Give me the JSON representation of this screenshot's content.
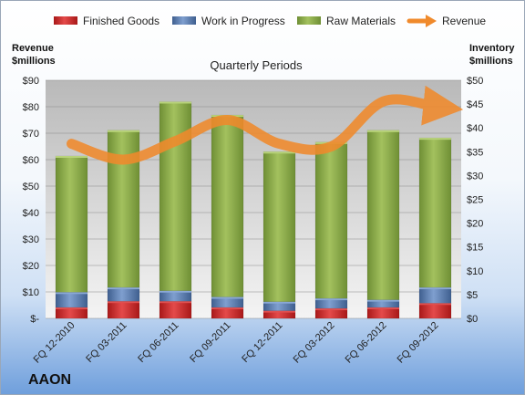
{
  "chart_data": {
    "type": "bar",
    "subtype": "stacked-bar-with-line",
    "title": "Quarterly Periods",
    "company": "AAON",
    "categories": [
      "FQ 12-2010",
      "FQ 03-2011",
      "FQ 06-2011",
      "FQ 09-2011",
      "FQ 12-2011",
      "FQ 03-2012",
      "FQ 06-2012",
      "FQ 09-2012"
    ],
    "left_axis": {
      "label_line1": "Revenue",
      "label_line2": "$millions",
      "ticks": [
        "$-",
        "$10",
        "$20",
        "$30",
        "$40",
        "$50",
        "$60",
        "$70",
        "$80",
        "$90"
      ],
      "ylim": [
        0,
        90
      ]
    },
    "right_axis": {
      "label_line1": "Inventory",
      "label_line2": "$millions",
      "ticks": [
        "$0",
        "$5",
        "$10",
        "$15",
        "$20",
        "$25",
        "$30",
        "$35",
        "$40",
        "$45",
        "$50"
      ],
      "ylim": [
        0,
        50
      ]
    },
    "grid": true,
    "legend_position": "top",
    "series": [
      {
        "name": "Finished Goods",
        "kind": "bar",
        "axis": "right",
        "color": "#cc2222",
        "values": [
          2.3,
          3.6,
          3.6,
          2.3,
          1.6,
          2.1,
          2.3,
          3.2
        ]
      },
      {
        "name": "Work in Progress",
        "kind": "bar",
        "axis": "right",
        "color": "#5b7fb0",
        "values": [
          3.2,
          2.9,
          2.2,
          2.2,
          1.9,
          2.1,
          1.6,
          3.3
        ]
      },
      {
        "name": "Raw Materials",
        "kind": "bar",
        "axis": "right",
        "color": "#8aaa48",
        "values": [
          28.6,
          33.0,
          39.7,
          38.2,
          31.5,
          32.8,
          35.6,
          31.4
        ]
      },
      {
        "name": "Revenue",
        "kind": "line",
        "axis": "left",
        "color": "#f08a2c",
        "values": [
          66,
          60,
          67,
          75,
          66,
          65,
          82,
          80
        ]
      }
    ]
  }
}
